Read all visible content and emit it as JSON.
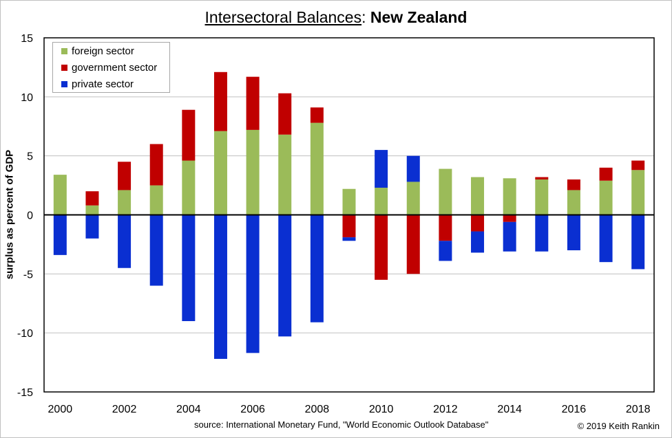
{
  "title": {
    "main": "Intersectoral Balances",
    "separator": ":",
    "sub": "New Zealand"
  },
  "source_note": "source:  International Monetary Fund, \"World Economic Outlook Database\"",
  "copyright": "© 2019 Keith Rankin",
  "chart_data": {
    "type": "bar",
    "stacked": true,
    "title": "Intersectoral Balances: New Zealand",
    "xlabel": "",
    "ylabel": "surplus as percent of GDP",
    "ylim": [
      -15,
      15
    ],
    "yticks": [
      -15,
      -10,
      -5,
      0,
      5,
      10,
      15
    ],
    "x_tick_labels": [
      "2000",
      "2002",
      "2004",
      "2006",
      "2008",
      "2010",
      "2012",
      "2014",
      "2016",
      "2018"
    ],
    "categories": [
      2000,
      2001,
      2002,
      2003,
      2004,
      2005,
      2006,
      2007,
      2008,
      2009,
      2010,
      2011,
      2012,
      2013,
      2014,
      2015,
      2016,
      2017,
      2018
    ],
    "grid": "horizontal",
    "legend_position": "top-left",
    "series": [
      {
        "name": "foreign sector",
        "color": "#9bbb59",
        "values": [
          3.4,
          0.8,
          2.1,
          2.5,
          4.6,
          7.1,
          7.2,
          6.8,
          7.8,
          2.2,
          2.3,
          2.8,
          3.9,
          3.2,
          3.1,
          3.0,
          2.1,
          2.9,
          3.8
        ]
      },
      {
        "name": "government sector",
        "color": "#c00000",
        "values": [
          0.0,
          1.2,
          2.4,
          3.5,
          4.3,
          5.0,
          4.5,
          3.5,
          1.3,
          -1.9,
          -5.5,
          -5.0,
          -2.2,
          -1.4,
          -0.6,
          0.2,
          0.9,
          1.1,
          0.8
        ]
      },
      {
        "name": "private sector",
        "color": "#0a2fd1",
        "values": [
          -3.4,
          -2.0,
          -4.5,
          -6.0,
          -9.0,
          -12.2,
          -11.7,
          -10.3,
          -9.1,
          -0.3,
          3.2,
          2.2,
          -1.7,
          -1.8,
          -2.5,
          -3.1,
          -3.0,
          -4.0,
          -4.6
        ]
      }
    ]
  }
}
